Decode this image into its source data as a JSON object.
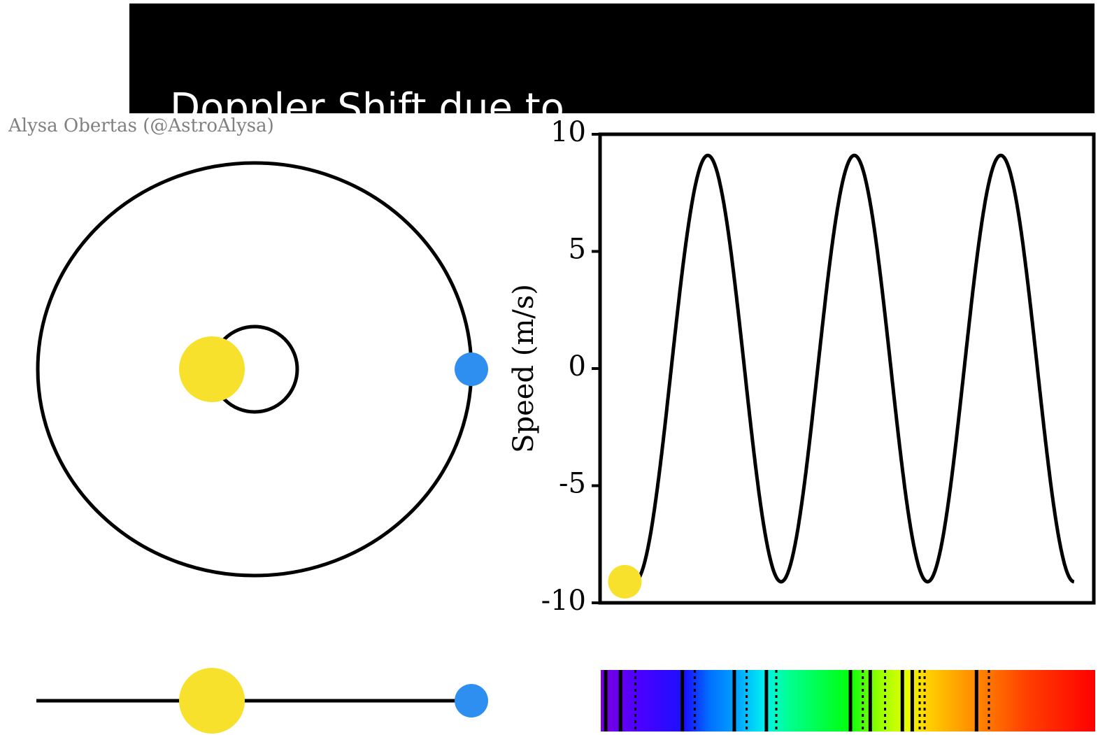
{
  "title": "Doppler Shift due to",
  "credit": "Alysa Obertas (@AstroAlysa)",
  "colors": {
    "star": "#f8e12c",
    "planet": "#2f8ff0",
    "orbit_line": "#000000",
    "banner": "#000000",
    "credit_text": "#808080"
  },
  "icons": {
    "star": "yellow-circle",
    "planet": "blue-circle"
  },
  "chart_data": [
    {
      "type": "line",
      "ylabel": "Speed (m/s)",
      "xlabel": "",
      "ylim": [
        -10,
        10
      ],
      "yticks": [
        10,
        5,
        0,
        -5,
        -10
      ],
      "ytick_labels": [
        "10",
        "5",
        "0",
        "-5",
        "-10"
      ],
      "grid": false,
      "series": [
        {
          "amplitude": 9.1,
          "cycles": 3,
          "start_phase": "trough",
          "x_start": 0.07,
          "x_end": 0.96,
          "values_note_free": true
        }
      ],
      "current_point": {
        "y": -9.1,
        "color": "#f8e12c"
      }
    }
  ],
  "spectrum": {
    "absorption_lines_solid": [
      0.01,
      0.04,
      0.165,
      0.27,
      0.335,
      0.505,
      0.545,
      0.61,
      0.63,
      0.76
    ],
    "absorption_lines_shifted": [
      0.07,
      0.19,
      0.295,
      0.355,
      0.53,
      0.575,
      0.645,
      0.655,
      0.785
    ]
  }
}
